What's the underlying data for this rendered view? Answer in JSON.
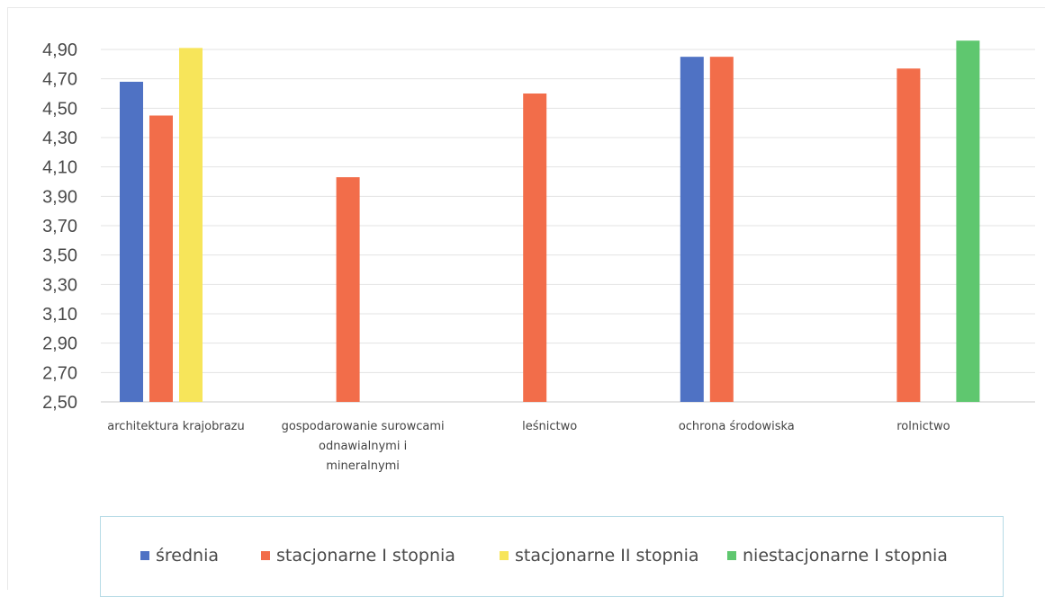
{
  "chart_data": {
    "type": "bar",
    "categories": [
      [
        "architektura krajobrazu"
      ],
      [
        "gospodarowanie surowcami",
        "odnawialnymi i",
        "mineralnymi"
      ],
      [
        "leśnictwo"
      ],
      [
        "ochrona środowiska"
      ],
      [
        "rolnictwo"
      ]
    ],
    "series": [
      {
        "name": "średnia",
        "color": "#4f72c4",
        "values": [
          4.68,
          null,
          null,
          4.85,
          null
        ]
      },
      {
        "name": "stacjonarne I stopnia",
        "color": "#f26d4a",
        "values": [
          4.45,
          4.03,
          4.6,
          4.85,
          4.77
        ]
      },
      {
        "name": "stacjonarne II stopnia",
        "color": "#f7e55a",
        "values": [
          4.91,
          null,
          null,
          null,
          null
        ]
      },
      {
        "name": "niestacjonarne I stopnia",
        "color": "#5fc76f",
        "values": [
          null,
          null,
          null,
          null,
          4.96
        ]
      }
    ],
    "ylim": [
      2.5,
      4.9
    ],
    "yticks": [
      "2,50",
      "2,70",
      "2,90",
      "3,10",
      "3,30",
      "3,50",
      "3,70",
      "3,90",
      "4,10",
      "4,30",
      "4,50",
      "4,70",
      "4,90"
    ],
    "grid": true,
    "legend_position": "bottom"
  }
}
